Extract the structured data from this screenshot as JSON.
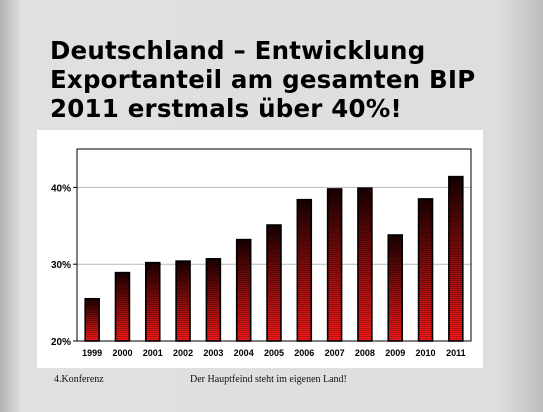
{
  "slide": {
    "title_lines": [
      "Deutschland – Entwicklung",
      "Exportanteil am gesamten BIP",
      "2011 erstmals über 40%!"
    ]
  },
  "footer": {
    "left": "4.Konferenz",
    "center": "Der Hauptfeind steht im eigenen Land!"
  },
  "colors": {
    "bar_dark": "#1a0000",
    "bar_light": "#ff1a1a",
    "bar_outline": "#000000"
  },
  "chart_data": {
    "type": "bar",
    "title": "",
    "xlabel": "",
    "ylabel": "",
    "categories": [
      "1999",
      "2000",
      "2001",
      "2002",
      "2003",
      "2004",
      "2005",
      "2006",
      "2007",
      "2008",
      "2009",
      "2010",
      "2011"
    ],
    "values": [
      25.5,
      28.9,
      30.2,
      30.4,
      30.7,
      33.2,
      35.1,
      38.4,
      39.8,
      39.9,
      33.8,
      38.5,
      41.4
    ],
    "ylim": [
      20,
      45
    ],
    "yticks": [
      20,
      30,
      40
    ],
    "ytick_labels": [
      "20%",
      "30%",
      "40%"
    ],
    "grid": true
  }
}
